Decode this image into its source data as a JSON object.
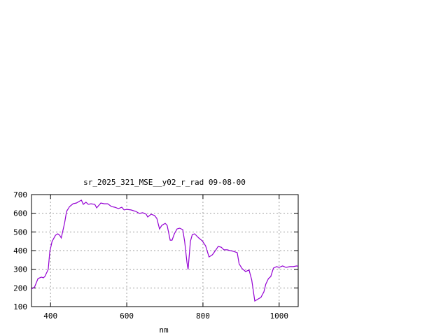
{
  "chart_data": {
    "type": "line",
    "title": "sr_2025_321_MSE__y02_r_rad 09-08-00",
    "xlabel": "nm",
    "ylabel": "",
    "xlim": [
      350,
      1050
    ],
    "ylim": [
      100,
      700
    ],
    "xticks": [
      400,
      600,
      800,
      1000
    ],
    "yticks": [
      100,
      200,
      300,
      400,
      500,
      600,
      700
    ],
    "grid": true,
    "legend": "none",
    "colors": {
      "line": "#9400d3",
      "grid": "#a0a0a0",
      "axis": "#000000"
    },
    "series": [
      {
        "x": [
          350,
          358,
          367,
          376,
          381,
          385,
          394,
          398,
          404,
          413,
          419,
          424,
          428,
          431,
          437,
          442,
          450,
          459,
          468,
          477,
          481,
          486,
          493,
          499,
          506,
          516,
          521,
          532,
          541,
          550,
          560,
          569,
          578,
          587,
          593,
          600,
          611,
          624,
          633,
          642,
          651,
          655,
          664,
          673,
          679,
          686,
          692,
          701,
          706,
          714,
          719,
          725,
          732,
          739,
          747,
          752,
          758,
          761,
          767,
          772,
          778,
          789,
          798,
          807,
          816,
          825,
          835,
          840,
          848,
          855,
          864,
          871,
          880,
          890,
          895,
          903,
          912,
          921,
          928,
          936,
          945,
          952,
          960,
          965,
          972,
          978,
          985,
          993,
          1000,
          1009,
          1018,
          1028,
          1037,
          1046,
          1050
        ],
        "y": [
          194,
          205,
          250,
          258,
          254,
          261,
          299,
          393,
          449,
          482,
          490,
          482,
          468,
          494,
          550,
          610,
          636,
          651,
          655,
          666,
          670,
          648,
          659,
          648,
          651,
          648,
          629,
          655,
          651,
          651,
          636,
          632,
          625,
          632,
          618,
          621,
          618,
          610,
          599,
          603,
          595,
          580,
          595,
          588,
          572,
          516,
          535,
          546,
          535,
          456,
          456,
          490,
          516,
          520,
          512,
          449,
          336,
          299,
          449,
          486,
          490,
          468,
          453,
          426,
          366,
          378,
          407,
          422,
          418,
          404,
          404,
          400,
          396,
          389,
          329,
          303,
          288,
          296,
          243,
          130,
          141,
          149,
          179,
          220,
          250,
          261,
          306,
          314,
          310,
          318,
          310,
          314,
          314,
          318,
          316
        ]
      }
    ]
  }
}
